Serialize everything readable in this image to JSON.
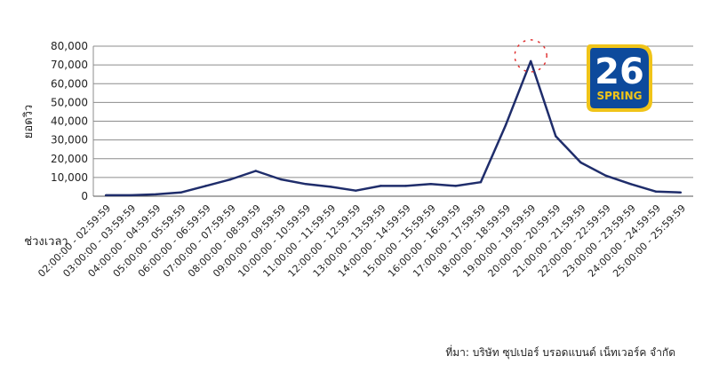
{
  "chart_data": {
    "type": "line",
    "ylabel": "ยอดวิว",
    "xlabel": "ช่วงเวลา",
    "ylim": [
      0,
      80000
    ],
    "yticks": [
      "0",
      "10,000",
      "20,000",
      "30,000",
      "40,000",
      "50,000",
      "60,000",
      "70,000",
      "80,000"
    ],
    "categories": [
      "02:00:00 - 02:59:59",
      "03:00:00 - 03:59:59",
      "04:00:00 - 04:59:59",
      "05:00:00 - 05:59:59",
      "06:00:00 - 06:59:59",
      "07:00:00 - 07:59:59",
      "08:00:00 - 08:59:59",
      "09:00:00 - 09:59:59",
      "10:00:00 - 10:59:59",
      "11:00:00 - 11:59:59",
      "12:00:00 - 12:59:59",
      "13:00:00 - 13:59:59",
      "14:00:00 - 14:59:59",
      "15:00:00 - 15:59:59",
      "16:00:00 - 16:59:59",
      "17:00:00 - 17:59:59",
      "18:00:00 - 18:59:59",
      "19:00:00 - 19:59:59",
      "20:00:00 - 20:59:59",
      "21:00:00 - 21:59:59",
      "22:00:00 - 22:59:59",
      "23:00:00 - 23:59:59",
      "24:00:00 - 24:59:59",
      "25:00:00 - 25:59:59"
    ],
    "series": [
      {
        "values": [
          500,
          500,
          1000,
          2000,
          5500,
          9000,
          13500,
          9000,
          6500,
          5000,
          3000,
          5500,
          5500,
          6500,
          5500,
          7500,
          38000,
          72000,
          32000,
          18000,
          11000,
          6500,
          2500,
          2000
        ]
      }
    ],
    "grid": true,
    "peak_highlight_index": 17,
    "colors": {
      "line": "#1f2d6b",
      "grid": "#8c8c8c",
      "highlight": "#e03030"
    }
  },
  "source_note": "ที่มา: บริษัท ซุปเปอร์ บรอดแบนด์ เน็ทเวอร์ค จำกัด",
  "logo": {
    "number": "26",
    "word": "SPRING",
    "colors": {
      "bg": "#0d4a9c",
      "border": "#f0c419",
      "text": "#ffffff"
    }
  }
}
